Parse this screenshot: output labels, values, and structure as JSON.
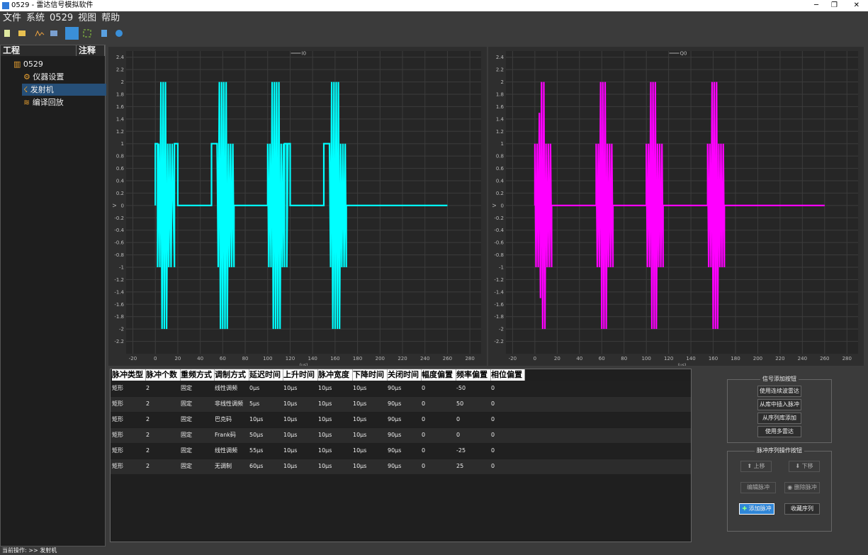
{
  "window": {
    "title": "0529 - 雷达信号模拟软件"
  },
  "menu": [
    "文件",
    "系统",
    "0529",
    "视图",
    "帮助"
  ],
  "tree": {
    "headers": [
      "工程",
      "注释"
    ],
    "root": "0529",
    "children": [
      "仪器设置",
      "发射机",
      "编译回放"
    ]
  },
  "chart_data": [
    {
      "type": "line",
      "legend": "I0",
      "x_label": "(µs)",
      "y_label": "V",
      "xlim": [
        -26,
        290
      ],
      "ylim": [
        -2.4,
        2.5
      ],
      "xticks": [
        -20,
        0,
        20,
        40,
        60,
        80,
        100,
        120,
        140,
        160,
        180,
        200,
        220,
        240,
        260,
        280
      ],
      "yticks": [
        -2.2,
        -2,
        -1.8,
        -1.6,
        -1.4,
        -1.2,
        -1,
        -0.8,
        -0.6,
        -0.4,
        -0.2,
        0,
        0.2,
        0.4,
        0.6,
        0.8,
        1,
        1.2,
        1.4,
        1.6,
        1.8,
        2,
        2.2,
        2.4
      ],
      "grid": true,
      "series": [
        {
          "name": "I0",
          "color": "#00ffff",
          "x": [
            0,
            0,
            2,
            2,
            3,
            4,
            5,
            6,
            7,
            8,
            9,
            10,
            11,
            12,
            13,
            14,
            15,
            17,
            17,
            20,
            20,
            50,
            50,
            55,
            56,
            57,
            58,
            59,
            60,
            61,
            62,
            63,
            64,
            65,
            66,
            67,
            68,
            69,
            70,
            70,
            100,
            100,
            101,
            102,
            103,
            104,
            105,
            106,
            107,
            108,
            109,
            110,
            111,
            112,
            113,
            114,
            115,
            115,
            117,
            117,
            118,
            120,
            120,
            150,
            150,
            155,
            156,
            157,
            158,
            159,
            160,
            161,
            162,
            163,
            164,
            165,
            166,
            167,
            168,
            169,
            170,
            170,
            260
          ],
          "values": [
            0,
            1,
            1,
            -1,
            1,
            -1,
            2,
            -2,
            2,
            -2,
            2,
            -2,
            1,
            -1,
            1,
            -1,
            1,
            -1,
            1,
            1,
            0,
            0,
            1,
            1,
            -1,
            2,
            -2,
            2,
            -2,
            2,
            -2,
            2,
            -2,
            1,
            -1,
            1,
            -1,
            1,
            -1,
            0,
            0,
            1,
            -1,
            1,
            -1,
            2,
            -2,
            2,
            -2,
            2,
            -2,
            2,
            -2,
            1,
            -1,
            1,
            -1,
            1,
            1,
            -1,
            1,
            1,
            0,
            0,
            1,
            1,
            -1,
            2,
            -2,
            2,
            -2,
            2,
            -2,
            2,
            -2,
            1,
            -1,
            1,
            -1,
            1,
            -1,
            0,
            0
          ]
        }
      ]
    },
    {
      "type": "line",
      "legend": "Q0",
      "x_label": "(µs)",
      "y_label": "V",
      "xlim": [
        -26,
        290
      ],
      "ylim": [
        -2.4,
        2.5
      ],
      "xticks": [
        -20,
        0,
        20,
        40,
        60,
        80,
        100,
        120,
        140,
        160,
        180,
        200,
        220,
        240,
        260,
        280
      ],
      "yticks": [
        -2.2,
        -2,
        -1.8,
        -1.6,
        -1.4,
        -1.2,
        -1,
        -0.8,
        -0.6,
        -0.4,
        -0.2,
        0,
        0.2,
        0.4,
        0.6,
        0.8,
        1,
        1.2,
        1.4,
        1.6,
        1.8,
        2,
        2.2,
        2.4
      ],
      "grid": true,
      "series": [
        {
          "name": "Q0",
          "color": "#ff00ff",
          "x": [
            0,
            0,
            1,
            2,
            3,
            4,
            5,
            6,
            7,
            8,
            9,
            10,
            11,
            12,
            13,
            14,
            15,
            15,
            55,
            55,
            56,
            57,
            58,
            59,
            60,
            61,
            62,
            63,
            64,
            65,
            66,
            67,
            68,
            69,
            70,
            70,
            100,
            100,
            101,
            102,
            103,
            104,
            105,
            106,
            107,
            108,
            109,
            110,
            111,
            112,
            113,
            114,
            115,
            115,
            155,
            155,
            156,
            157,
            158,
            159,
            160,
            161,
            162,
            163,
            164,
            165,
            166,
            167,
            168,
            169,
            170,
            170,
            260
          ],
          "values": [
            0,
            1,
            -1,
            1,
            -1,
            1.5,
            -1.5,
            2,
            -2,
            2,
            -2,
            1,
            -1,
            1,
            -1,
            1,
            -1,
            0,
            0,
            1,
            -1,
            1,
            -1,
            2,
            -2,
            2,
            -2,
            2,
            -2,
            1,
            -1,
            1,
            -1,
            1,
            -1,
            0,
            0,
            1,
            -1,
            1,
            -1,
            2,
            -2,
            2,
            -2,
            2,
            -2,
            1,
            -1,
            1,
            -1,
            1,
            -1,
            0,
            0,
            1,
            -1,
            1,
            -1,
            2,
            -2,
            2,
            -2,
            2,
            -2,
            1,
            -1,
            1,
            -1,
            1,
            -1,
            0,
            0
          ]
        }
      ]
    }
  ],
  "table": {
    "headers": [
      "脉冲类型",
      "脉冲个数",
      "重频方式",
      "调制方式",
      "延迟时间",
      "上升时间",
      "脉冲宽度",
      "下降时间",
      "关闭时间",
      "幅度偏置",
      "频率偏置",
      "相位偏置"
    ],
    "rows": [
      [
        "矩形",
        "2",
        "固定",
        "线性调频",
        "0µs",
        "10µs",
        "10µs",
        "10µs",
        "90µs",
        "0",
        "-50",
        "0"
      ],
      [
        "矩形",
        "2",
        "固定",
        "非线性调频",
        "5µs",
        "10µs",
        "10µs",
        "10µs",
        "90µs",
        "0",
        "50",
        "0"
      ],
      [
        "矩形",
        "2",
        "固定",
        "巴克码",
        "10µs",
        "10µs",
        "10µs",
        "10µs",
        "90µs",
        "0",
        "0",
        "0"
      ],
      [
        "矩形",
        "2",
        "固定",
        "Frank码",
        "50µs",
        "10µs",
        "10µs",
        "10µs",
        "90µs",
        "0",
        "0",
        "0"
      ],
      [
        "矩形",
        "2",
        "固定",
        "线性调频",
        "55µs",
        "10µs",
        "10µs",
        "10µs",
        "90µs",
        "0",
        "-25",
        "0"
      ],
      [
        "矩形",
        "2",
        "固定",
        "无调制",
        "60µs",
        "10µs",
        "10µs",
        "10µs",
        "90µs",
        "0",
        "25",
        "0"
      ]
    ]
  },
  "panel": {
    "signal_group": {
      "title": "信号添加按钮",
      "buttons": [
        "使用连续波雷达",
        "从库中插入脉冲",
        "从序列库添加",
        "使用多雷达"
      ]
    },
    "sequence_group": {
      "title": "脉冲序列操作按钮",
      "buttons": [
        "上移",
        "下移",
        "编辑脉冲",
        "删除脉冲",
        "添加脉冲",
        "收藏序列"
      ]
    }
  },
  "status": {
    "label": "当前操作:",
    "value": ">> 发射机"
  }
}
